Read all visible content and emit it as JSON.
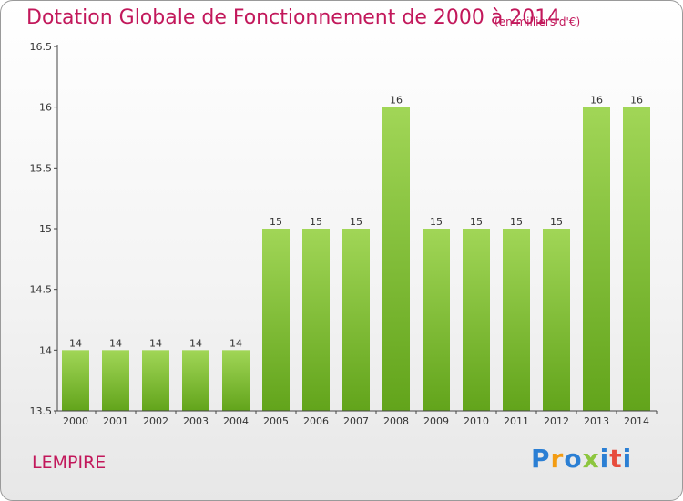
{
  "title": "Dotation Globale de Fonctionnement de 2000 à 2014",
  "subtitle": "(en milliers d'€)",
  "commune": "LEMPIRE",
  "logo": {
    "letters": [
      "P",
      "r",
      "o",
      "x",
      "i",
      "t",
      "i"
    ],
    "colors": [
      "#2b7fd4",
      "#f39c12",
      "#2b7fd4",
      "#8dc63f",
      "#2b7fd4",
      "#e74c3c",
      "#2b7fd4"
    ]
  },
  "colors": {
    "accent": "#c2185b",
    "bar_top": "#a1d657",
    "bar_bottom": "#62a41b"
  },
  "chart_data": {
    "type": "bar",
    "categories": [
      "2000",
      "2001",
      "2002",
      "2003",
      "2004",
      "2005",
      "2006",
      "2007",
      "2008",
      "2009",
      "2010",
      "2011",
      "2012",
      "2013",
      "2014"
    ],
    "values": [
      14,
      14,
      14,
      14,
      14,
      15,
      15,
      15,
      16,
      15,
      15,
      15,
      15,
      16,
      16
    ],
    "data_labels": [
      "14",
      "14",
      "14",
      "14",
      "14",
      "15",
      "15",
      "15",
      "16",
      "15",
      "15",
      "15",
      "15",
      "16",
      "16"
    ],
    "ylim": [
      13.5,
      16.5
    ],
    "yticks": [
      13.5,
      14,
      14.5,
      15,
      15.5,
      16,
      16.5
    ],
    "ytick_labels": [
      "13.5",
      "14",
      "14.5",
      "15",
      "15.5",
      "16",
      "16.5"
    ],
    "grid": false,
    "legend": "none"
  }
}
